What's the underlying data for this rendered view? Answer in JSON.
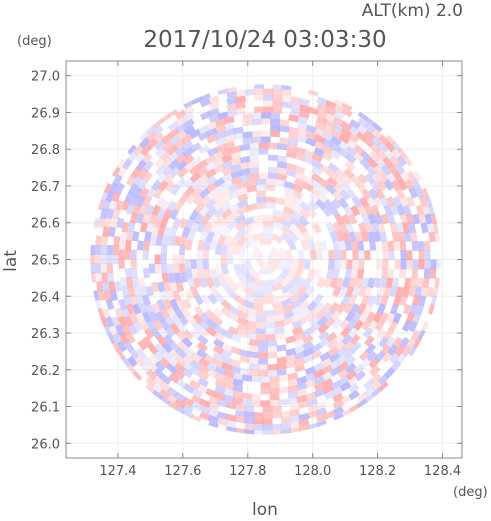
{
  "chart_data": {
    "type": "heatmap",
    "title": "2017/10/24 03:03:30",
    "subtitle": "ALT(km) 2.0",
    "xlabel": "lon",
    "ylabel": "lat",
    "x_unit": "(deg)",
    "y_unit": "(deg)",
    "xlim": [
      127.24,
      128.46
    ],
    "ylim": [
      25.96,
      27.04
    ],
    "x_ticks": [
      127.4,
      127.6,
      127.8,
      128.0,
      128.2,
      128.4
    ],
    "x_tick_labels": [
      "127.4",
      "127.6",
      "127.8",
      "128.0",
      "128.2",
      "128.4"
    ],
    "y_ticks": [
      26.0,
      26.1,
      26.2,
      26.3,
      26.4,
      26.5,
      26.6,
      26.7,
      26.8,
      26.9,
      27.0
    ],
    "y_tick_labels": [
      "26.0",
      "26.1",
      "26.2",
      "26.3",
      "26.4",
      "26.5",
      "26.6",
      "26.7",
      "26.8",
      "26.9",
      "27.0"
    ],
    "field_center": {
      "lon": 127.855,
      "lat": 26.5
    },
    "field_radius_deg": 0.54,
    "grid": true,
    "colors": {
      "positive": "#ff9a9a",
      "negative": "#a8a8ff",
      "frame": "#888888",
      "text": "#555555"
    }
  }
}
